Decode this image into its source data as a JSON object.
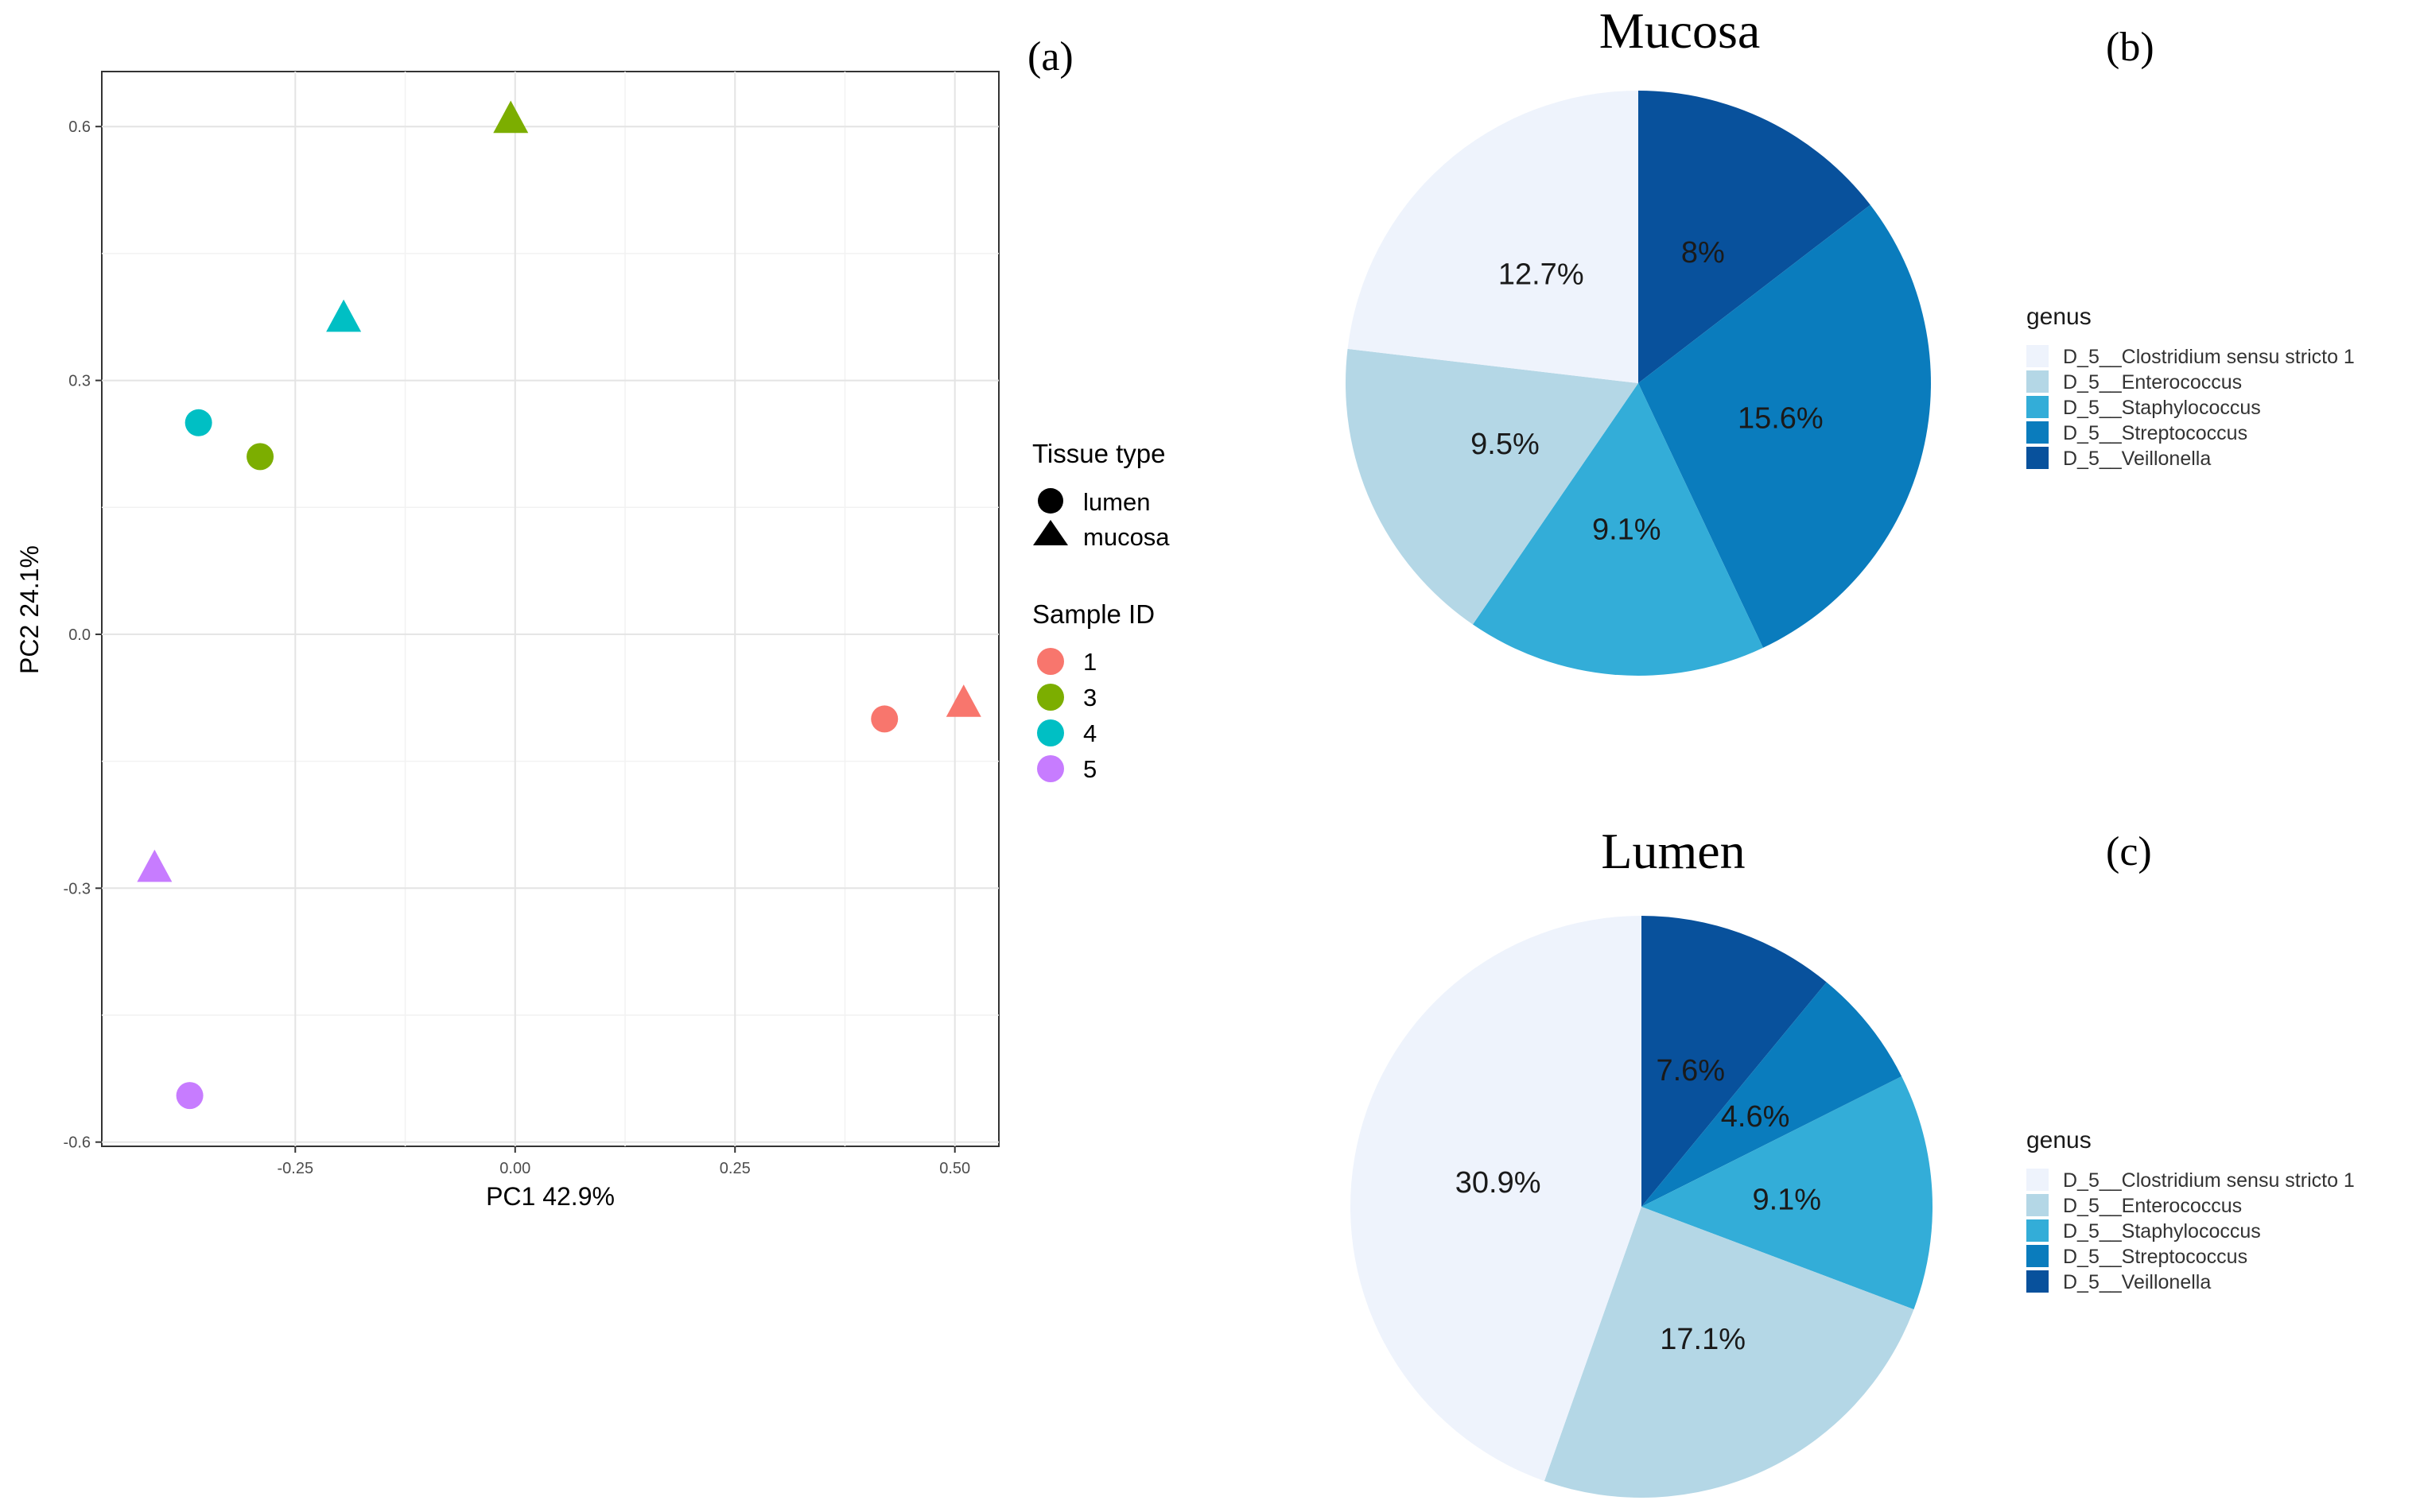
{
  "chart_data": [
    {
      "type": "scatter",
      "panel_label": "(a)",
      "xlabel": "PC1 42.9%",
      "ylabel": "PC2 24.1%",
      "xlim": [
        -0.47,
        0.55
      ],
      "ylim": [
        -0.605,
        0.665
      ],
      "xticks": [
        -0.25,
        0.0,
        0.25,
        0.5
      ],
      "xtick_labels": [
        "-0.25",
        "0.00",
        "0.25",
        "0.50"
      ],
      "yticks": [
        -0.6,
        -0.3,
        0.0,
        0.3,
        0.6
      ],
      "ytick_labels": [
        "-0.6",
        "-0.3",
        "0.0",
        "0.3",
        "0.6"
      ],
      "grid": true,
      "shape_legend": {
        "title": "Tissue type",
        "items": [
          {
            "label": "lumen",
            "shape": "circle"
          },
          {
            "label": "mucosa",
            "shape": "triangle"
          }
        ]
      },
      "color_legend": {
        "title": "Sample ID",
        "items": [
          {
            "label": "1",
            "color": "#F8766D"
          },
          {
            "label": "3",
            "color": "#7CAE00"
          },
          {
            "label": "4",
            "color": "#00BFC4"
          },
          {
            "label": "5",
            "color": "#C77CFF"
          }
        ]
      },
      "points": [
        {
          "sample": "1",
          "tissue": "lumen",
          "x": 0.42,
          "y": -0.1
        },
        {
          "sample": "1",
          "tissue": "mucosa",
          "x": 0.51,
          "y": -0.08
        },
        {
          "sample": "3",
          "tissue": "lumen",
          "x": -0.29,
          "y": 0.21
        },
        {
          "sample": "3",
          "tissue": "mucosa",
          "x": -0.005,
          "y": 0.61
        },
        {
          "sample": "4",
          "tissue": "lumen",
          "x": -0.36,
          "y": 0.25
        },
        {
          "sample": "4",
          "tissue": "mucosa",
          "x": -0.195,
          "y": 0.375
        },
        {
          "sample": "5",
          "tissue": "lumen",
          "x": -0.37,
          "y": -0.545
        },
        {
          "sample": "5",
          "tissue": "mucosa",
          "x": -0.41,
          "y": -0.275
        }
      ]
    },
    {
      "type": "pie",
      "panel_label": "(b)",
      "title": "Mucosa",
      "legend_title": "genus",
      "slices": [
        {
          "label": "D_5__Veillonella",
          "value": 8,
          "text": "8%",
          "color": "#08519C"
        },
        {
          "label": "D_5__Streptococcus",
          "value": 15.6,
          "text": "15.6%",
          "color": "#0A7CBD"
        },
        {
          "label": "D_5__Staphylococcus",
          "value": 9.1,
          "text": "9.1%",
          "color": "#33ADD8"
        },
        {
          "label": "D_5__Enterococcus",
          "value": 9.5,
          "text": "9.5%",
          "color": "#B4D7E6"
        },
        {
          "label": "D_5__Clostridium sensu stricto 1",
          "value": 12.7,
          "text": "12.7%",
          "color": "#EEF3FC"
        }
      ],
      "legend_order": [
        "D_5__Clostridium sensu stricto 1",
        "D_5__Enterococcus",
        "D_5__Staphylococcus",
        "D_5__Streptococcus",
        "D_5__Veillonella"
      ]
    },
    {
      "type": "pie",
      "panel_label": "(c)",
      "title": "Lumen",
      "legend_title": "genus",
      "slices": [
        {
          "label": "D_5__Veillonella",
          "value": 7.6,
          "text": "7.6%",
          "color": "#08519C"
        },
        {
          "label": "D_5__Streptococcus",
          "value": 4.6,
          "text": "4.6%",
          "color": "#0A7CBD"
        },
        {
          "label": "D_5__Staphylococcus",
          "value": 9.1,
          "text": "9.1%",
          "color": "#33ADD8"
        },
        {
          "label": "D_5__Enterococcus",
          "value": 17.1,
          "text": "17.1%",
          "color": "#B4D7E6"
        },
        {
          "label": "D_5__Clostridium sensu stricto 1",
          "value": 30.9,
          "text": "30.9%",
          "color": "#EEF3FC"
        }
      ],
      "legend_order": [
        "D_5__Clostridium sensu stricto 1",
        "D_5__Enterococcus",
        "D_5__Staphylococcus",
        "D_5__Streptococcus",
        "D_5__Veillonella"
      ]
    }
  ]
}
